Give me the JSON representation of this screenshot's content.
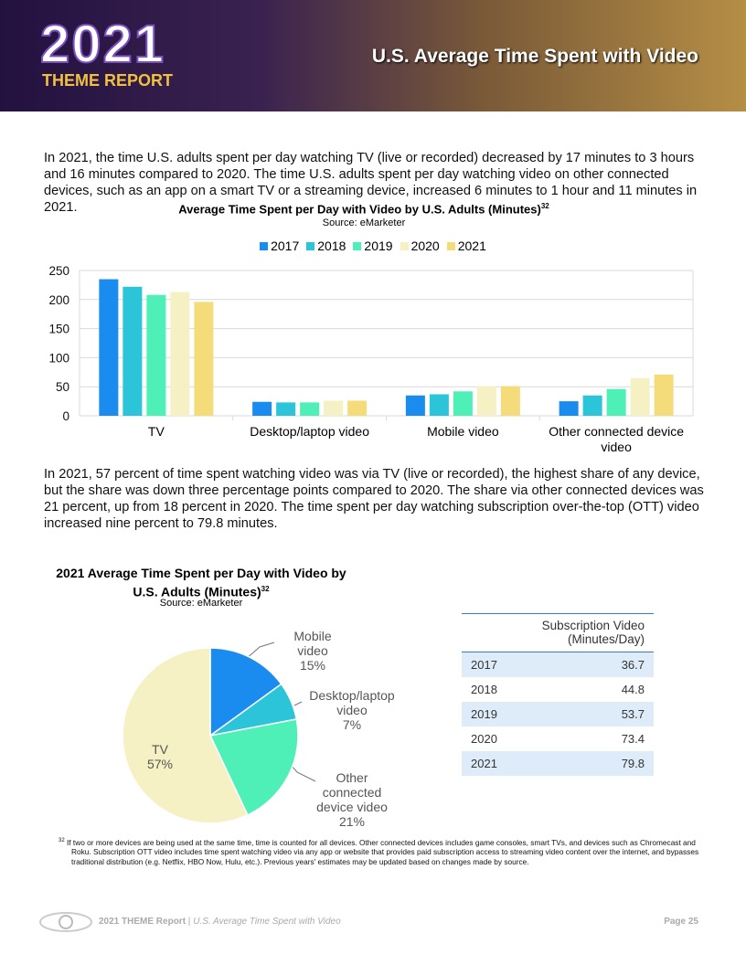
{
  "header": {
    "year": "2021",
    "subtitle": "THEME REPORT",
    "title": "U.S. Average Time Spent with Video"
  },
  "paragraphs": [
    "In 2021, the time U.S. adults spent per day watching TV (live or recorded) decreased by 17 minutes to 3 hours and 16 minutes compared to 2020. The time U.S. adults spent per day watching video on other connected devices, such as an app on a smart TV or a streaming device, increased 6 minutes to 1 hour and 11 minutes in 2021.",
    "In 2021, 57 percent of time spent watching video was via TV (live or recorded), the highest share of any device, but the share was down three percentage points compared to 2020. The share via other connected devices was 21 percent, up from 18 percent in 2020. The time spent per day watching subscription over-the-top (OTT) video increased nine percent to 79.8 minutes."
  ],
  "chart_data": [
    {
      "type": "bar",
      "title": "Average Time Spent per Day with Video by U.S. Adults (Minutes)",
      "title_note": "32",
      "subtitle": "Source: eMarketer",
      "categories": [
        "TV",
        "Desktop/laptop video",
        "Mobile video",
        "Other connected device video"
      ],
      "series": [
        {
          "name": "2017",
          "color": "#1a8cf0",
          "values": [
            235,
            24,
            35,
            25
          ]
        },
        {
          "name": "2018",
          "color": "#2cc4d8",
          "values": [
            222,
            23,
            37,
            35
          ]
        },
        {
          "name": "2019",
          "color": "#4ef0b8",
          "values": [
            208,
            23,
            42,
            46
          ]
        },
        {
          "name": "2020",
          "color": "#f5f1c4",
          "values": [
            213,
            26,
            51,
            65
          ]
        },
        {
          "name": "2021",
          "color": "#f5dc7a",
          "values": [
            196,
            26,
            51,
            71
          ]
        }
      ],
      "ylim": [
        0,
        250
      ],
      "yticks": [
        0,
        50,
        100,
        150,
        200,
        250
      ],
      "grid": true
    },
    {
      "type": "pie",
      "title": "2021 Average Time Spent per Day with Video by U.S. Adults (Minutes)",
      "title_note": "32",
      "subtitle": "Source: eMarketer",
      "categories": [
        "Mobile video",
        "Desktop/laptop video",
        "Other connected device video",
        "TV"
      ],
      "values": [
        15,
        7,
        21,
        57
      ],
      "value_labels": [
        "15%",
        "7%",
        "21%",
        "57%"
      ],
      "colors": [
        "#1a8cf0",
        "#2cc4d8",
        "#4ef0b8",
        "#f5f1c4"
      ]
    }
  ],
  "table": {
    "header": [
      "Subscription Video (Minutes/Day)"
    ],
    "rows": [
      [
        "2017",
        "36.7"
      ],
      [
        "2018",
        "44.8"
      ],
      [
        "2019",
        "53.7"
      ],
      [
        "2020",
        "73.4"
      ],
      [
        "2021",
        "79.8"
      ]
    ]
  },
  "footnote": {
    "number": "32",
    "text": "If two or more devices are being used at the same time, time is counted for all devices. Other connected devices includes game consoles, smart TVs, and devices such as Chromecast and Roku. Subscription OTT video includes time spent watching video via any app or website that provides paid subscription access to streaming video content over the internet, and bypasses traditional distribution (e.g. Netflix, HBO Now, Hulu, etc.). Previous years' estimates may be updated based on changes made by source."
  },
  "footer": {
    "report": "2021 THEME Report",
    "section": "U.S. Average Time Spent with Video",
    "page": "Page 25"
  }
}
